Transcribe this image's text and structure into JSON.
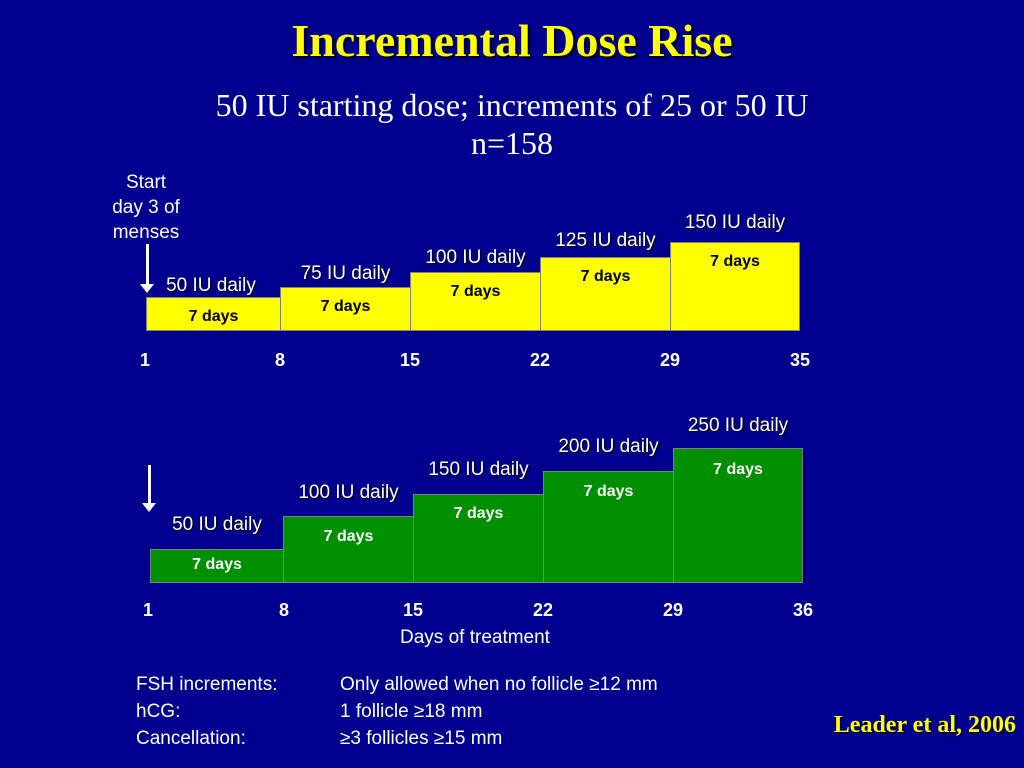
{
  "title": "Incremental Dose Rise",
  "subtitle": {
    "line1": "50 IU starting dose; increments of 25 or 50 IU",
    "line2": "n=158"
  },
  "start_label": [
    "Start",
    "day 3 of",
    "menses"
  ],
  "colors": {
    "background": "#00008f",
    "yellow": "#ffff00",
    "green": "#008f00"
  },
  "regimens": [
    {
      "id": "top",
      "color": "yellow",
      "steps": [
        {
          "dose": "50 IU daily",
          "duration": "7 days"
        },
        {
          "dose": "75 IU daily",
          "duration": "7 days"
        },
        {
          "dose": "100 IU daily",
          "duration": "7 days"
        },
        {
          "dose": "125 IU daily",
          "duration": "7 days"
        },
        {
          "dose": "150 IU daily",
          "duration": "7 days"
        }
      ],
      "ticks": [
        "1",
        "8",
        "15",
        "22",
        "29",
        "35"
      ]
    },
    {
      "id": "bottom",
      "color": "green",
      "steps": [
        {
          "dose": "50 IU daily",
          "duration": "7 days"
        },
        {
          "dose": "100 IU daily",
          "duration": "7 days"
        },
        {
          "dose": "150 IU daily",
          "duration": "7 days"
        },
        {
          "dose": "200 IU daily",
          "duration": "7 days"
        },
        {
          "dose": "250 IU daily",
          "duration": "7 days"
        }
      ],
      "ticks": [
        "1",
        "8",
        "15",
        "22",
        "29",
        "36"
      ]
    }
  ],
  "axis_label": "Days of treatment",
  "notes": [
    {
      "key": "FSH increments:",
      "value": "Only allowed when no follicle  ≥12 mm"
    },
    {
      "key": "hCG:",
      "value": "1 follicle ≥18 mm"
    },
    {
      "key": "Cancellation:",
      "value": "≥3 follicles ≥15 mm"
    }
  ],
  "citation": "Leader et al, 2006",
  "icons": [
    "down-arrow-icon"
  ]
}
